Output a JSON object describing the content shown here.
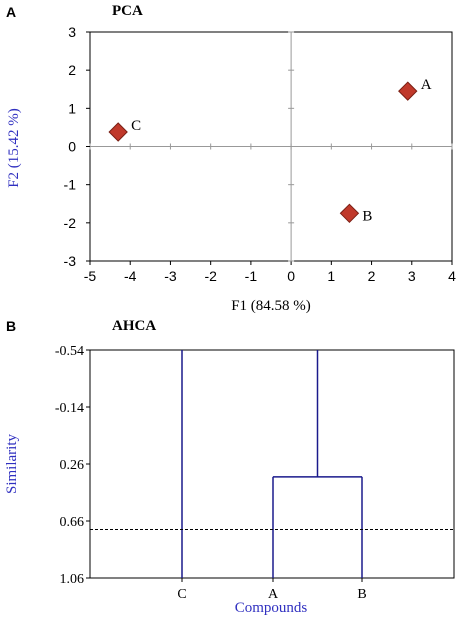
{
  "panels": {
    "a_letter": "A",
    "b_letter": "B"
  },
  "chart_data": [
    {
      "type": "scatter",
      "title": "PCA",
      "xlabel": "F1 (84.58 %)",
      "ylabel": "F2 (15.42 %)",
      "xlim": [
        -5,
        4
      ],
      "ylim": [
        -3,
        3
      ],
      "xticks": [
        "-5",
        "-4",
        "-3",
        "-2",
        "-1",
        "0",
        "1",
        "2",
        "3",
        "4"
      ],
      "yticks": [
        "3",
        "2",
        "1",
        "0",
        "-1",
        "-2",
        "-3"
      ],
      "points": [
        {
          "label": "A",
          "x": 2.9,
          "y": 1.45
        },
        {
          "label": "B",
          "x": 1.45,
          "y": -1.75
        },
        {
          "label": "C",
          "x": -4.3,
          "y": 0.38
        }
      ],
      "marker_color": "#c0392b",
      "xlabel_color": "#000000",
      "ylabel_color": "#3030c0"
    },
    {
      "type": "dendrogram",
      "title": "AHCA",
      "xlabel": "Compounds",
      "ylabel": "Similarity",
      "ylim": [
        -0.54,
        1.06
      ],
      "yticks": [
        "-0.54",
        "-0.14",
        "0.26",
        "0.66",
        "1.06"
      ],
      "leaves": [
        "C",
        "A",
        "B"
      ],
      "merges": [
        {
          "children": [
            "A",
            "B"
          ],
          "similarity": 0.35
        },
        {
          "children": [
            "C",
            "AB"
          ],
          "similarity": -0.54
        }
      ],
      "truncation_line": 0.72,
      "line_color": "#1a1a8c",
      "label_color": "#3030c0"
    }
  ]
}
